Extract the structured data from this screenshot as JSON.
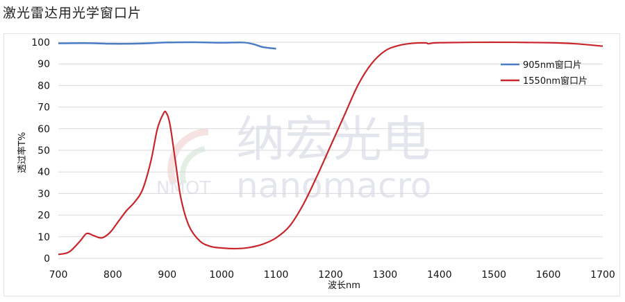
{
  "title": "激光雷达用光学窗口片",
  "watermark": {
    "cn": "纳宏光电",
    "en_left": "NMOT",
    "en_right": "nanomacro"
  },
  "chart_data": {
    "type": "line",
    "title": "激光雷达用光学窗口片",
    "xlabel": "波长nm",
    "ylabel": "透过率T%",
    "xlim": [
      700,
      1700
    ],
    "ylim": [
      0,
      100
    ],
    "xticks": [
      700,
      800,
      900,
      1000,
      1100,
      1200,
      1300,
      1400,
      1500,
      1600,
      1700
    ],
    "yticks": [
      0,
      10,
      20,
      30,
      40,
      50,
      60,
      70,
      80,
      90,
      100
    ],
    "grid": "horizontal",
    "legend": "top-right",
    "series": [
      {
        "name": "905nm窗口片",
        "color": "#4a7cc4",
        "x": [
          700,
          750,
          800,
          850,
          900,
          950,
          1000,
          1040,
          1060,
          1075,
          1100
        ],
        "y": [
          99.5,
          99.6,
          99.3,
          99.4,
          99.9,
          100,
          99.8,
          99.9,
          99.0,
          97.8,
          97.0
        ]
      },
      {
        "name": "1550nm窗口片",
        "color": "#c8252a",
        "x": [
          700,
          720,
          740,
          752,
          765,
          780,
          795,
          810,
          825,
          840,
          855,
          870,
          882,
          893,
          898,
          905,
          915,
          925,
          940,
          960,
          980,
          1000,
          1025,
          1050,
          1075,
          1100,
          1125,
          1150,
          1175,
          1200,
          1225,
          1250,
          1275,
          1300,
          1325,
          1350,
          1375,
          1380,
          1400,
          1500,
          1600,
          1650,
          1700
        ],
        "y": [
          1.8,
          3,
          8,
          11.5,
          10.5,
          9.5,
          12,
          17,
          22,
          26,
          32,
          45,
          60,
          67,
          67.5,
          62,
          45,
          28,
          15,
          8,
          5.5,
          4.8,
          4.5,
          5,
          6.5,
          9.5,
          15,
          25,
          38,
          52,
          66,
          80,
          90,
          96,
          98.5,
          99.5,
          99.7,
          99.3,
          99.8,
          100,
          99.8,
          99.3,
          98.2
        ]
      }
    ]
  }
}
